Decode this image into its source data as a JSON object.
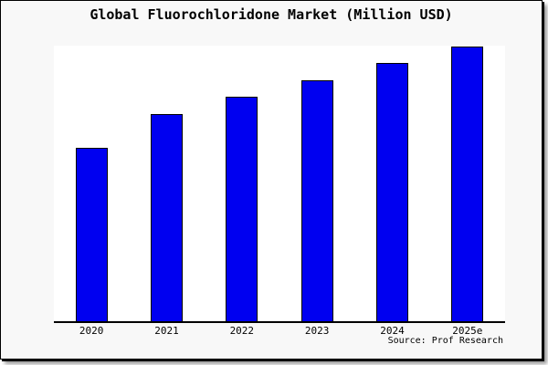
{
  "window": {
    "canvas_background": "#f8f8f8",
    "page_background": "#ffffff",
    "border_color": "#000000"
  },
  "chart_data": {
    "type": "bar",
    "title": "Global Fluorochloridone Market (Million USD)",
    "categories": [
      "2020",
      "2021",
      "2022",
      "2023",
      "2024",
      "2025e"
    ],
    "values": [
      190,
      227,
      246,
      264,
      283,
      301
    ],
    "values_note": "relative units estimated from bar pixel heights; chart displays no y-axis or value labels",
    "ylim": [
      0,
      302
    ],
    "xlabel": "",
    "ylabel": "",
    "legend": "none",
    "grid": false,
    "y_axis_visible": false,
    "bar_color": "#0000f0",
    "bar_edge_color": "#000000",
    "axis_color": "#000000",
    "plot_background": "#ffffff",
    "source_note": "Source: Prof Research"
  }
}
